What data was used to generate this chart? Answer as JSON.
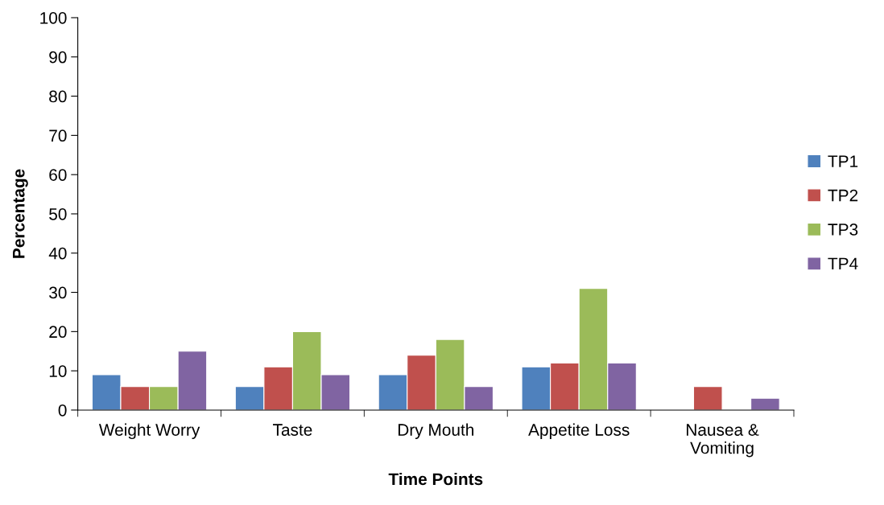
{
  "chart_data": {
    "type": "bar",
    "xlabel": "Time Points",
    "ylabel": "Percentage",
    "categories": [
      "Weight Worry",
      "Taste",
      "Dry Mouth",
      "Appetite Loss",
      "Nausea &\nVomiting"
    ],
    "series": [
      {
        "name": "TP1",
        "color": "#4f81bd",
        "values": [
          9,
          6,
          9,
          11,
          null
        ]
      },
      {
        "name": "TP2",
        "color": "#c0504d",
        "values": [
          6,
          11,
          14,
          12,
          6
        ]
      },
      {
        "name": "TP3",
        "color": "#9bbb59",
        "values": [
          6,
          20,
          18,
          31,
          null
        ]
      },
      {
        "name": "TP4",
        "color": "#8064a2",
        "values": [
          15,
          9,
          6,
          12,
          3
        ]
      }
    ],
    "ylim": [
      0,
      100
    ],
    "yticks": [
      0,
      10,
      20,
      30,
      40,
      50,
      60,
      70,
      80,
      90,
      100
    ],
    "grid": false,
    "legend": "right"
  }
}
